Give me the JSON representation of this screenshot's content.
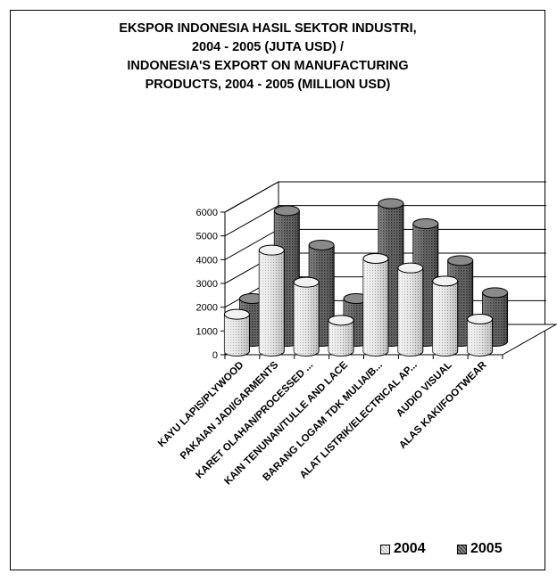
{
  "chart_data": {
    "type": "bar",
    "title_lines": [
      "EKSPOR INDONESIA HASIL SEKTOR INDUSTRI,",
      "2004 - 2005 (JUTA USD) /",
      "INDONESIA'S EXPORT ON MANUFACTURING",
      "PRODUCTS, 2004 - 2005 (MILLION USD)"
    ],
    "categories": [
      "KAYU LAPIS/PLYWOOD",
      "PAKAIAN JADI/GARMENTS",
      "KARET OLAHAN/PROCESSED ...",
      "KAIN TENUNAN/TULLE AND LACE",
      "BARANG LOGAM TDK MULIA/B...",
      "ALAT LISTRIK/ELECTRICAL AP...",
      "AUDIO VISUAL",
      "ALAS KAKI/FOOTWEAR"
    ],
    "series": [
      {
        "name": "2004",
        "values": [
          1550,
          4250,
          2900,
          1300,
          3900,
          3500,
          2950,
          1350
        ],
        "color": "#d9d9d9"
      },
      {
        "name": "2005",
        "values": [
          1800,
          5500,
          4050,
          1800,
          5800,
          4950,
          3400,
          2050
        ],
        "color": "#595959"
      }
    ],
    "yticks": [
      "0",
      "1000",
      "2000",
      "3000",
      "4000",
      "5000",
      "6000"
    ],
    "ylim": [
      0,
      6000
    ],
    "grid": true,
    "legend_position": "bottom-right",
    "style": "3d-cylinder"
  }
}
